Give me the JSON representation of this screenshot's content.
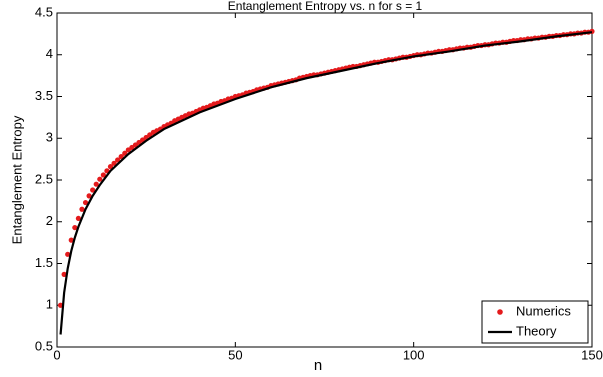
{
  "chart_data": {
    "type": "line",
    "title": "Entanglement Entropy vs. n for s = 1",
    "x_label": "n",
    "y_label": "Entanglement Entropy",
    "xlim": [
      0,
      150
    ],
    "xticks": [
      0,
      50,
      100,
      150
    ],
    "ylim": [
      0.5,
      4.5
    ],
    "yticks": [
      0.5,
      1,
      1.5,
      2,
      2.5,
      3,
      3.5,
      4,
      4.5
    ],
    "grid": false,
    "legend": "lower right",
    "series": [
      {
        "name": "Numerics",
        "color": "#e41a1c",
        "mode": "markers",
        "x": [
          1,
          2,
          3,
          4,
          5,
          6,
          7,
          8,
          9,
          10,
          11,
          12,
          13,
          14,
          15,
          16,
          17,
          18,
          19,
          20,
          21,
          22,
          23,
          24,
          25,
          26,
          27,
          28,
          29,
          30,
          31,
          32,
          33,
          34,
          35,
          36,
          37,
          38,
          39,
          40,
          41,
          42,
          43,
          44,
          45,
          46,
          47,
          48,
          49,
          50,
          51,
          52,
          53,
          54,
          55,
          56,
          57,
          58,
          59,
          60,
          61,
          62,
          63,
          64,
          65,
          66,
          67,
          68,
          69,
          70,
          71,
          72,
          73,
          74,
          75,
          76,
          77,
          78,
          79,
          80,
          81,
          82,
          83,
          84,
          85,
          86,
          87,
          88,
          89,
          90,
          91,
          92,
          93,
          94,
          95,
          96,
          97,
          98,
          99,
          100,
          101,
          102,
          103,
          104,
          105,
          106,
          107,
          108,
          109,
          110,
          111,
          112,
          113,
          114,
          115,
          116,
          117,
          118,
          119,
          120,
          121,
          122,
          123,
          124,
          125,
          126,
          127,
          128,
          129,
          130,
          131,
          132,
          133,
          134,
          135,
          136,
          137,
          138,
          139,
          140,
          141,
          142,
          143,
          144,
          145,
          146,
          147,
          148,
          149,
          150
        ],
        "values": [
          1.0,
          1.37,
          1.61,
          1.78,
          1.93,
          2.04,
          2.15,
          2.23,
          2.31,
          2.38,
          2.45,
          2.51,
          2.56,
          2.61,
          2.66,
          2.7,
          2.74,
          2.78,
          2.82,
          2.86,
          2.89,
          2.92,
          2.95,
          2.98,
          3.01,
          3.04,
          3.07,
          3.09,
          3.11,
          3.14,
          3.16,
          3.18,
          3.21,
          3.23,
          3.25,
          3.27,
          3.29,
          3.3,
          3.32,
          3.34,
          3.36,
          3.37,
          3.39,
          3.41,
          3.42,
          3.44,
          3.45,
          3.47,
          3.48,
          3.5,
          3.51,
          3.52,
          3.54,
          3.55,
          3.56,
          3.58,
          3.59,
          3.6,
          3.61,
          3.63,
          3.64,
          3.65,
          3.66,
          3.67,
          3.68,
          3.69,
          3.7,
          3.72,
          3.73,
          3.74,
          3.75,
          3.76,
          3.76,
          3.77,
          3.78,
          3.79,
          3.8,
          3.81,
          3.82,
          3.83,
          3.84,
          3.85,
          3.86,
          3.86,
          3.87,
          3.88,
          3.89,
          3.9,
          3.91,
          3.91,
          3.92,
          3.93,
          3.94,
          3.94,
          3.95,
          3.96,
          3.97,
          3.97,
          3.98,
          3.99,
          4.0,
          4.0,
          4.01,
          4.02,
          4.02,
          4.03,
          4.04,
          4.04,
          4.05,
          4.06,
          4.06,
          4.07,
          4.08,
          4.08,
          4.09,
          4.09,
          4.1,
          4.11,
          4.11,
          4.12,
          4.12,
          4.13,
          4.14,
          4.14,
          4.15,
          4.15,
          4.16,
          4.17,
          4.17,
          4.18,
          4.18,
          4.19,
          4.19,
          4.2,
          4.2,
          4.21,
          4.21,
          4.22,
          4.22,
          4.23,
          4.23,
          4.24,
          4.24,
          4.25,
          4.25,
          4.26,
          4.26,
          4.27,
          4.27,
          4.28
        ]
      },
      {
        "name": "Theory",
        "color": "#000000",
        "mode": "line",
        "x": [
          1,
          2,
          3,
          4,
          5,
          6,
          8,
          10,
          12,
          15,
          20,
          25,
          30,
          40,
          50,
          60,
          70,
          80,
          90,
          100,
          110,
          120,
          130,
          140,
          150
        ],
        "values": [
          0.65,
          1.15,
          1.44,
          1.65,
          1.81,
          1.94,
          2.15,
          2.31,
          2.44,
          2.61,
          2.81,
          2.97,
          3.11,
          3.31,
          3.47,
          3.61,
          3.72,
          3.81,
          3.9,
          3.98,
          4.04,
          4.11,
          4.16,
          4.22,
          4.27
        ]
      }
    ]
  }
}
